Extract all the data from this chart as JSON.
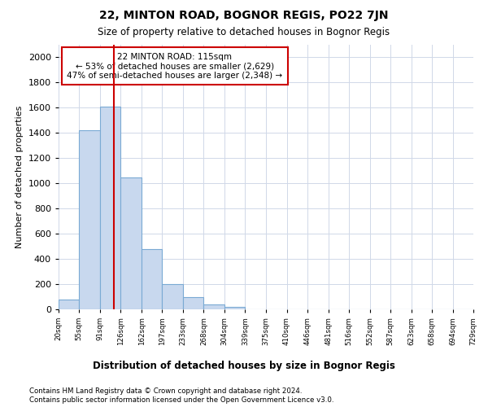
{
  "title": "22, MINTON ROAD, BOGNOR REGIS, PO22 7JN",
  "subtitle": "Size of property relative to detached houses in Bognor Regis",
  "xlabel_bottom": "Distribution of detached houses by size in Bognor Regis",
  "ylabel": "Number of detached properties",
  "footer_line1": "Contains HM Land Registry data © Crown copyright and database right 2024.",
  "footer_line2": "Contains public sector information licensed under the Open Government Licence v3.0.",
  "annotation_line1": "22 MINTON ROAD: 115sqm",
  "annotation_line2": "← 53% of detached houses are smaller (2,629)",
  "annotation_line3": "47% of semi-detached houses are larger (2,348) →",
  "vline_x": 115,
  "bin_edges": [
    20,
    55,
    91,
    126,
    162,
    197,
    233,
    268,
    304,
    339,
    375,
    410,
    446,
    481,
    516,
    552,
    587,
    623,
    658,
    694,
    729
  ],
  "bar_heights": [
    80,
    1420,
    1610,
    1050,
    480,
    200,
    100,
    40,
    20,
    0,
    0,
    0,
    0,
    0,
    0,
    0,
    0,
    0,
    0,
    0
  ],
  "bar_color": "#c8d8ee",
  "bar_edge_color": "#7aaad4",
  "vline_color": "#cc0000",
  "annotation_box_edgecolor": "#cc0000",
  "ylim": [
    0,
    2100
  ],
  "ytick_interval": 200,
  "background_color": "#ffffff",
  "plot_bg_color": "#ffffff",
  "grid_color": "#d0d8e8"
}
